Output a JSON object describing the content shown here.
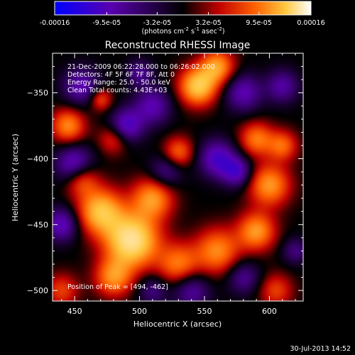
{
  "colorbar": {
    "tick_labels": [
      "-0.00016",
      "-9.5e-05",
      "-3.2e-05",
      "3.2e-05",
      "9.5e-05",
      "0.00016"
    ],
    "tick_values": [
      -0.00016,
      -9.5e-05,
      -3.2e-05,
      3.2e-05,
      9.5e-05,
      0.00016
    ],
    "range": [
      -0.00016,
      0.00016
    ],
    "units_text": "(photons cm",
    "units_exp1": "-2",
    "units_mid": " s",
    "units_exp2": "-1",
    "units_tail": " asec",
    "units_exp3": "-2",
    "units_close": ")"
  },
  "chart_data": {
    "type": "heatmap",
    "title": "Reconstructed RHESSI Image",
    "xlabel": "Heliocentric X (arcsec)",
    "ylabel": "Heliocentric Y (arcsec)",
    "xlim": [
      433,
      626
    ],
    "ylim": [
      -508,
      -320
    ],
    "x_ticks": [
      450,
      500,
      550,
      600
    ],
    "y_ticks": [
      -500,
      -450,
      -400,
      -350
    ],
    "colormap": [
      "#0000ff",
      "#5a00b0",
      "#000000",
      "#c00000",
      "#ff6000",
      "#ffc840",
      "#ffffff"
    ],
    "info_lines": [
      "21-Dec-2009 06:22:28.000 to 06:26:02.000",
      "Detectors: 4F 5F 6F 7F 8F, Att 0",
      "Energy Range: 25.0 - 50.0 keV",
      "Clean    Total counts: 4.43E+03"
    ],
    "peak_text": "Position of Peak = [494, -462]",
    "peak": [
      494,
      -462
    ],
    "blobs": [
      {
        "x": 494,
        "y": -462,
        "sigma": 14,
        "amp": 1.0
      },
      {
        "x": 470,
        "y": -440,
        "sigma": 12,
        "amp": 0.75
      },
      {
        "x": 510,
        "y": -430,
        "sigma": 11,
        "amp": 0.6
      },
      {
        "x": 480,
        "y": -490,
        "sigma": 10,
        "amp": 0.55
      },
      {
        "x": 455,
        "y": -415,
        "sigma": 9,
        "amp": 0.5
      },
      {
        "x": 530,
        "y": -480,
        "sigma": 11,
        "amp": 0.5
      },
      {
        "x": 560,
        "y": -470,
        "sigma": 12,
        "amp": 0.55
      },
      {
        "x": 590,
        "y": -455,
        "sigma": 10,
        "amp": 0.6
      },
      {
        "x": 600,
        "y": -420,
        "sigma": 11,
        "amp": 0.6
      },
      {
        "x": 590,
        "y": -385,
        "sigma": 9,
        "amp": 0.5
      },
      {
        "x": 610,
        "y": -390,
        "sigma": 8,
        "amp": 0.45
      },
      {
        "x": 545,
        "y": -345,
        "sigma": 10,
        "amp": 0.8
      },
      {
        "x": 560,
        "y": -330,
        "sigma": 9,
        "amp": 0.6
      },
      {
        "x": 530,
        "y": -395,
        "sigma": 8,
        "amp": 0.45
      },
      {
        "x": 445,
        "y": -375,
        "sigma": 9,
        "amp": 0.55
      },
      {
        "x": 480,
        "y": -385,
        "sigma": 8,
        "amp": 0.35
      },
      {
        "x": 440,
        "y": -500,
        "sigma": 9,
        "amp": 0.35
      },
      {
        "x": 605,
        "y": -500,
        "sigma": 9,
        "amp": 0.35
      },
      {
        "x": 510,
        "y": -360,
        "sigma": 10,
        "amp": -0.45
      },
      {
        "x": 490,
        "y": -375,
        "sigma": 9,
        "amp": -0.55
      },
      {
        "x": 450,
        "y": -405,
        "sigma": 10,
        "amp": -0.6
      },
      {
        "x": 440,
        "y": -450,
        "sigma": 9,
        "amp": -0.5
      },
      {
        "x": 455,
        "y": -345,
        "sigma": 10,
        "amp": -0.45
      },
      {
        "x": 520,
        "y": -410,
        "sigma": 9,
        "amp": -0.35
      },
      {
        "x": 560,
        "y": -400,
        "sigma": 10,
        "amp": -0.55
      },
      {
        "x": 575,
        "y": -410,
        "sigma": 8,
        "amp": -0.5
      },
      {
        "x": 580,
        "y": -350,
        "sigma": 10,
        "amp": -0.45
      },
      {
        "x": 610,
        "y": -345,
        "sigma": 9,
        "amp": -0.4
      },
      {
        "x": 540,
        "y": -500,
        "sigma": 10,
        "amp": -0.4
      },
      {
        "x": 510,
        "y": -500,
        "sigma": 8,
        "amp": -0.3
      },
      {
        "x": 580,
        "y": -490,
        "sigma": 9,
        "amp": -0.35
      },
      {
        "x": 470,
        "y": -355,
        "sigma": 6,
        "amp": 0.4
      },
      {
        "x": 500,
        "y": -335,
        "sigma": 7,
        "amp": -0.35
      },
      {
        "x": 620,
        "y": -470,
        "sigma": 7,
        "amp": -0.3
      }
    ]
  },
  "footer": {
    "timestamp": "30-Jul-2013 14:52"
  }
}
